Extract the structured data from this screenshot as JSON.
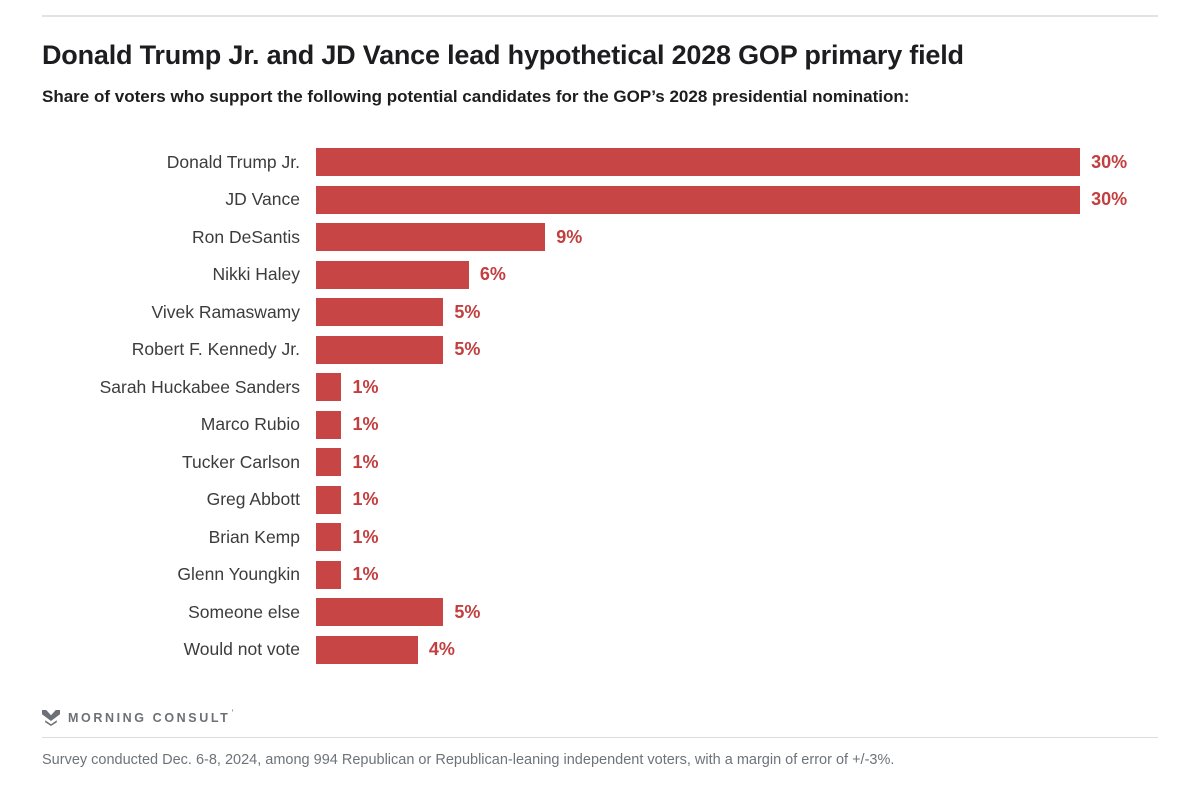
{
  "header": {
    "title": "Donald Trump Jr. and JD Vance lead hypothetical 2028 GOP primary field",
    "subtitle": "Share of voters who support the following potential candidates for the GOP’s 2028 presidential nomination:"
  },
  "chart_data": {
    "type": "bar",
    "orientation": "horizontal",
    "title": "Donald Trump Jr. and JD Vance lead hypothetical 2028 GOP primary field",
    "subtitle": "Share of voters who support the following potential candidates for the GOP’s 2028 presidential nomination:",
    "categories": [
      "Donald Trump Jr.",
      "JD Vance",
      "Ron DeSantis",
      "Nikki Haley",
      "Vivek Ramaswamy",
      "Robert F. Kennedy Jr.",
      "Sarah Huckabee Sanders",
      "Marco Rubio",
      "Tucker Carlson",
      "Greg Abbott",
      "Brian Kemp",
      "Glenn Youngkin",
      "Someone else",
      "Would not vote"
    ],
    "values": [
      30,
      30,
      9,
      6,
      5,
      5,
      1,
      1,
      1,
      1,
      1,
      1,
      5,
      4
    ],
    "value_suffix": "%",
    "xlim": [
      0,
      30
    ],
    "grid": false,
    "legend": false,
    "bar_color": "#C74545",
    "value_label_color": "#C33E3E"
  },
  "footer": {
    "logo_icon": "morning-consult-m-icon",
    "logo_text": "MORNING CONSULT",
    "trademark": "’",
    "source_note": "Survey conducted Dec. 6-8, 2024, among 994 Republican or Republican-leaning independent voters, with a margin of error of +/-3%."
  },
  "colors": {
    "bar": "#C74545",
    "value_label": "#C33E3E",
    "title_text": "#1d1d1f",
    "category_text": "#3c3c3c",
    "footer_text": "#6e737a",
    "logo_gray": "#6b7176",
    "divider": "#e2e2e2"
  }
}
